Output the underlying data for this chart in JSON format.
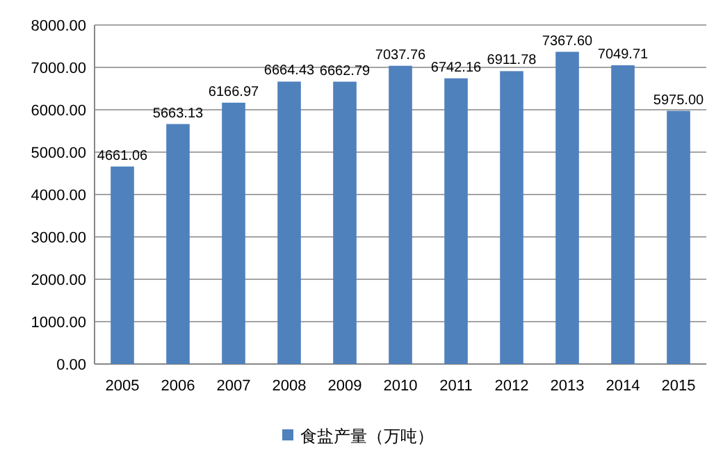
{
  "chart_data": {
    "type": "bar",
    "categories": [
      "2005",
      "2006",
      "2007",
      "2008",
      "2009",
      "2010",
      "2011",
      "2012",
      "2013",
      "2014",
      "2015"
    ],
    "series": [
      {
        "name": "食盐产量（万吨）",
        "color": "#4f81bd",
        "values": [
          4661.06,
          5663.13,
          6166.97,
          6664.43,
          6662.79,
          7037.76,
          6742.16,
          6911.78,
          7367.6,
          7049.71,
          5975.0
        ],
        "value_labels": [
          "4661.06",
          "5663.13",
          "6166.97",
          "6664.43",
          "6662.79",
          "7037.76",
          "6742.16",
          "6911.78",
          "7367.60",
          "7049.71",
          "5975.00"
        ]
      }
    ],
    "ylim": [
      0,
      8000
    ],
    "yticks": [
      {
        "value": 0,
        "label": "0.00"
      },
      {
        "value": 1000,
        "label": "1000.00"
      },
      {
        "value": 2000,
        "label": "2000.00"
      },
      {
        "value": 3000,
        "label": "3000.00"
      },
      {
        "value": 4000,
        "label": "4000.00"
      },
      {
        "value": 5000,
        "label": "5000.00"
      },
      {
        "value": 6000,
        "label": "6000.00"
      },
      {
        "value": 7000,
        "label": "7000.00"
      },
      {
        "value": 8000,
        "label": "8000.00"
      }
    ],
    "grid": "y",
    "legend": "bottom"
  }
}
